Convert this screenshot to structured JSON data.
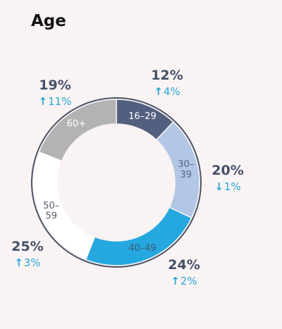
{
  "chart_data": {
    "type": "pie",
    "title": "Age",
    "slices": [
      {
        "label": "16–29",
        "value": 12,
        "change": "4%",
        "direction": "up",
        "color": "#525f7f",
        "label_color": "#ffffff"
      },
      {
        "label": "30–39",
        "value": 20,
        "change": "1%",
        "direction": "down",
        "color": "#b2c6e5",
        "label_color": "#596280"
      },
      {
        "label": "40–49",
        "value": 24,
        "change": "2%",
        "direction": "up",
        "color": "#25a8e0",
        "label_color": "#3d5a75"
      },
      {
        "label": "50–59",
        "value": 25,
        "change": "3%",
        "direction": "up",
        "color": "#ffffff",
        "label_color": "#5a5a6a"
      },
      {
        "label": "60+",
        "value": 19,
        "change": "11%",
        "direction": "up",
        "color": "#b3b3b3",
        "label_color": "#ffffff"
      }
    ]
  },
  "colors": {
    "outline": "#4a5266",
    "percent_text": "#445069",
    "change_text": "#2aa6d6",
    "background": "#f9f3f3"
  }
}
